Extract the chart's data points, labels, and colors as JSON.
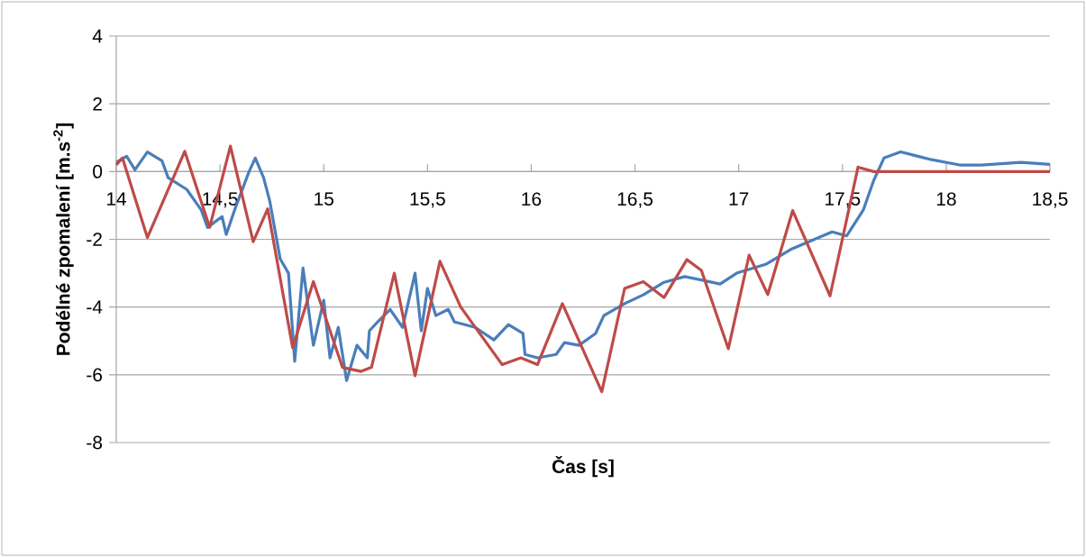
{
  "chart_data": {
    "type": "line",
    "xlabel": "Čas [s]",
    "ylabel": "Podélné zpomalení [m.s$^{-2}$]",
    "xlim": [
      14,
      18.5
    ],
    "ylim": [
      -8,
      4
    ],
    "xticks": [
      14,
      {
        "value": 14.5,
        "label": "14,5"
      },
      15,
      {
        "value": 15.5,
        "label": "15,5"
      },
      16,
      {
        "value": 16.5,
        "label": "16,5"
      },
      17,
      {
        "value": 17.5,
        "label": "17,5"
      },
      18,
      {
        "value": 18.5,
        "label": "18,5"
      }
    ],
    "yticks": [
      -8,
      -6,
      -4,
      -2,
      0,
      2,
      4
    ],
    "grid": "y",
    "legend": false,
    "marker": "none",
    "line_style": "solid",
    "series": [
      {
        "color": "#4a7ebb",
        "x": [
          14.0,
          14.05,
          14.09,
          14.15,
          14.22,
          14.25,
          14.34,
          14.41,
          14.44,
          14.51,
          14.53,
          14.57,
          14.64,
          14.67,
          14.71,
          14.74,
          14.79,
          14.83,
          14.86,
          14.9,
          14.95,
          15.0,
          15.03,
          15.07,
          15.11,
          15.16,
          15.21,
          15.22,
          15.26,
          15.32,
          15.38,
          15.44,
          15.47,
          15.5,
          15.54,
          15.6,
          15.63,
          15.73,
          15.82,
          15.89,
          15.96,
          15.97,
          16.03,
          16.12,
          16.16,
          16.23,
          16.31,
          16.35,
          16.45,
          16.54,
          16.64,
          16.74,
          16.82,
          16.91,
          16.99,
          17.13,
          17.25,
          17.35,
          17.45,
          17.52,
          17.6,
          17.65,
          17.7,
          17.78,
          17.93,
          18.07,
          18.17,
          18.36,
          18.5
        ],
        "values": [
          0.27,
          0.45,
          0.05,
          0.58,
          0.32,
          -0.18,
          -0.53,
          -1.14,
          -1.65,
          -1.33,
          -1.86,
          -1.14,
          0.0,
          0.4,
          -0.18,
          -0.88,
          -2.58,
          -3.0,
          -5.6,
          -2.85,
          -5.13,
          -3.8,
          -5.5,
          -4.6,
          -6.17,
          -5.13,
          -5.5,
          -4.7,
          -4.44,
          -4.07,
          -4.6,
          -3.0,
          -4.7,
          -3.45,
          -4.25,
          -4.07,
          -4.44,
          -4.6,
          -4.97,
          -4.52,
          -4.78,
          -5.4,
          -5.5,
          -5.4,
          -5.05,
          -5.13,
          -4.78,
          -4.25,
          -3.9,
          -3.64,
          -3.27,
          -3.1,
          -3.2,
          -3.32,
          -3.0,
          -2.74,
          -2.3,
          -2.04,
          -1.78,
          -1.9,
          -1.14,
          -0.27,
          0.4,
          0.58,
          0.35,
          0.19,
          0.19,
          0.27,
          0.21
        ]
      },
      {
        "color": "#be4b48",
        "x": [
          14.0,
          14.03,
          14.15,
          14.33,
          14.45,
          14.55,
          14.66,
          14.73,
          14.85,
          14.95,
          15.09,
          15.18,
          15.23,
          15.34,
          15.44,
          15.56,
          15.66,
          15.86,
          15.95,
          16.03,
          16.15,
          16.34,
          16.45,
          16.54,
          16.64,
          16.75,
          16.82,
          16.95,
          17.05,
          17.14,
          17.26,
          17.44,
          17.575,
          17.65,
          18.0,
          18.5
        ],
        "values": [
          0.2,
          0.4,
          -1.95,
          0.6,
          -1.65,
          0.75,
          -2.07,
          -1.1,
          -5.2,
          -3.25,
          -5.78,
          -5.9,
          -5.78,
          -3.0,
          -6.03,
          -2.65,
          -4.0,
          -5.7,
          -5.5,
          -5.7,
          -3.9,
          -6.5,
          -3.45,
          -3.25,
          -3.72,
          -2.6,
          -2.92,
          -5.23,
          -2.47,
          -3.63,
          -1.15,
          -3.67,
          0.13,
          0.0,
          0.0,
          0.0
        ]
      }
    ]
  }
}
